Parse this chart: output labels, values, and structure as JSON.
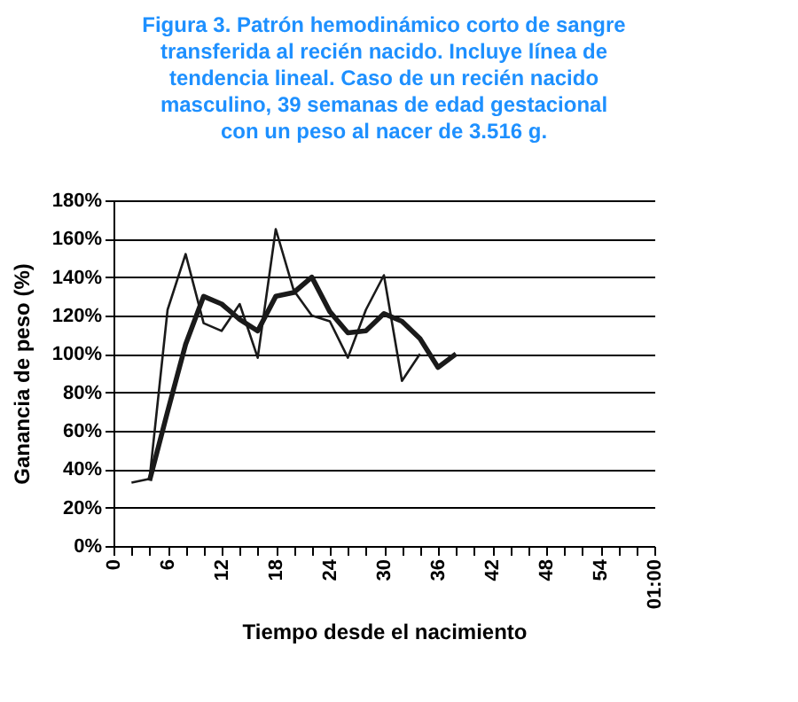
{
  "chart_data": {
    "type": "line",
    "title": [
      "Figura 3. Patrón hemodinámico corto de sangre",
      "transferida al recién nacido. Incluye línea de",
      "tendencia lineal. Caso de un recién nacido",
      "masculino, 39 semanas de edad gestacional",
      "con un peso al nacer de 3.516 g."
    ],
    "xlabel": "Tiempo desde el nacimiento",
    "ylabel": "Ganancia de peso (%)",
    "series": [
      {
        "color": "#1a1a1a",
        "x": [
          2,
          4,
          6,
          8,
          10,
          12,
          14,
          16,
          18,
          20,
          22,
          24,
          26,
          28,
          30,
          32,
          34
        ],
        "values": [
          33,
          35,
          123,
          152,
          116,
          112,
          126,
          98,
          165,
          133,
          120,
          117,
          98,
          123,
          141,
          86,
          100
        ]
      },
      {
        "type": "line",
        "color": "#1a1a1a",
        "x": [
          4,
          6,
          8,
          10,
          12,
          14,
          16,
          18,
          20,
          22,
          24,
          26,
          28,
          30,
          32,
          34,
          36,
          38
        ],
        "values": [
          34,
          70,
          105,
          130,
          126,
          118,
          112,
          130,
          132,
          140,
          122,
          111,
          112,
          121,
          117,
          108,
          93,
          100
        ]
      }
    ],
    "xlim": [
      0,
      60
    ],
    "xticks": [
      0,
      {
        "value": 2,
        "label": null
      },
      {
        "value": 4,
        "label": null
      },
      6,
      {
        "value": 8,
        "label": null
      },
      {
        "value": 10,
        "label": null
      },
      12,
      {
        "value": 14,
        "label": null
      },
      {
        "value": 16,
        "label": null
      },
      18,
      {
        "value": 20,
        "label": null
      },
      {
        "value": 22,
        "label": null
      },
      24,
      {
        "value": 26,
        "label": null
      },
      {
        "value": 28,
        "label": null
      },
      30,
      {
        "value": 32,
        "label": null
      },
      {
        "value": 34,
        "label": null
      },
      36,
      {
        "value": 38,
        "label": null
      },
      {
        "value": 40,
        "label": null
      },
      42,
      {
        "value": 44,
        "label": null
      },
      {
        "value": 46,
        "label": null
      },
      48,
      {
        "value": 50,
        "label": null
      },
      {
        "value": 52,
        "label": null
      },
      54,
      {
        "value": 56,
        "label": null
      },
      {
        "value": 58,
        "label": null
      },
      {
        "value": 60,
        "label": "01:00"
      }
    ],
    "ylim": [
      0,
      180
    ],
    "yticks": [
      {
        "value": 0,
        "label": "0%"
      },
      {
        "value": 20,
        "label": "20%"
      },
      {
        "value": 40,
        "label": "40%"
      },
      {
        "value": 60,
        "label": "60%"
      },
      {
        "value": 80,
        "label": "80%"
      },
      {
        "value": 100,
        "label": "100%"
      },
      {
        "value": 120,
        "label": "120%"
      },
      {
        "value": 140,
        "label": "140%"
      },
      {
        "value": 160,
        "label": "160%"
      },
      {
        "value": 180,
        "label": "180%"
      }
    ],
    "grid": "y",
    "marker": "none",
    "line_style": "solid"
  }
}
